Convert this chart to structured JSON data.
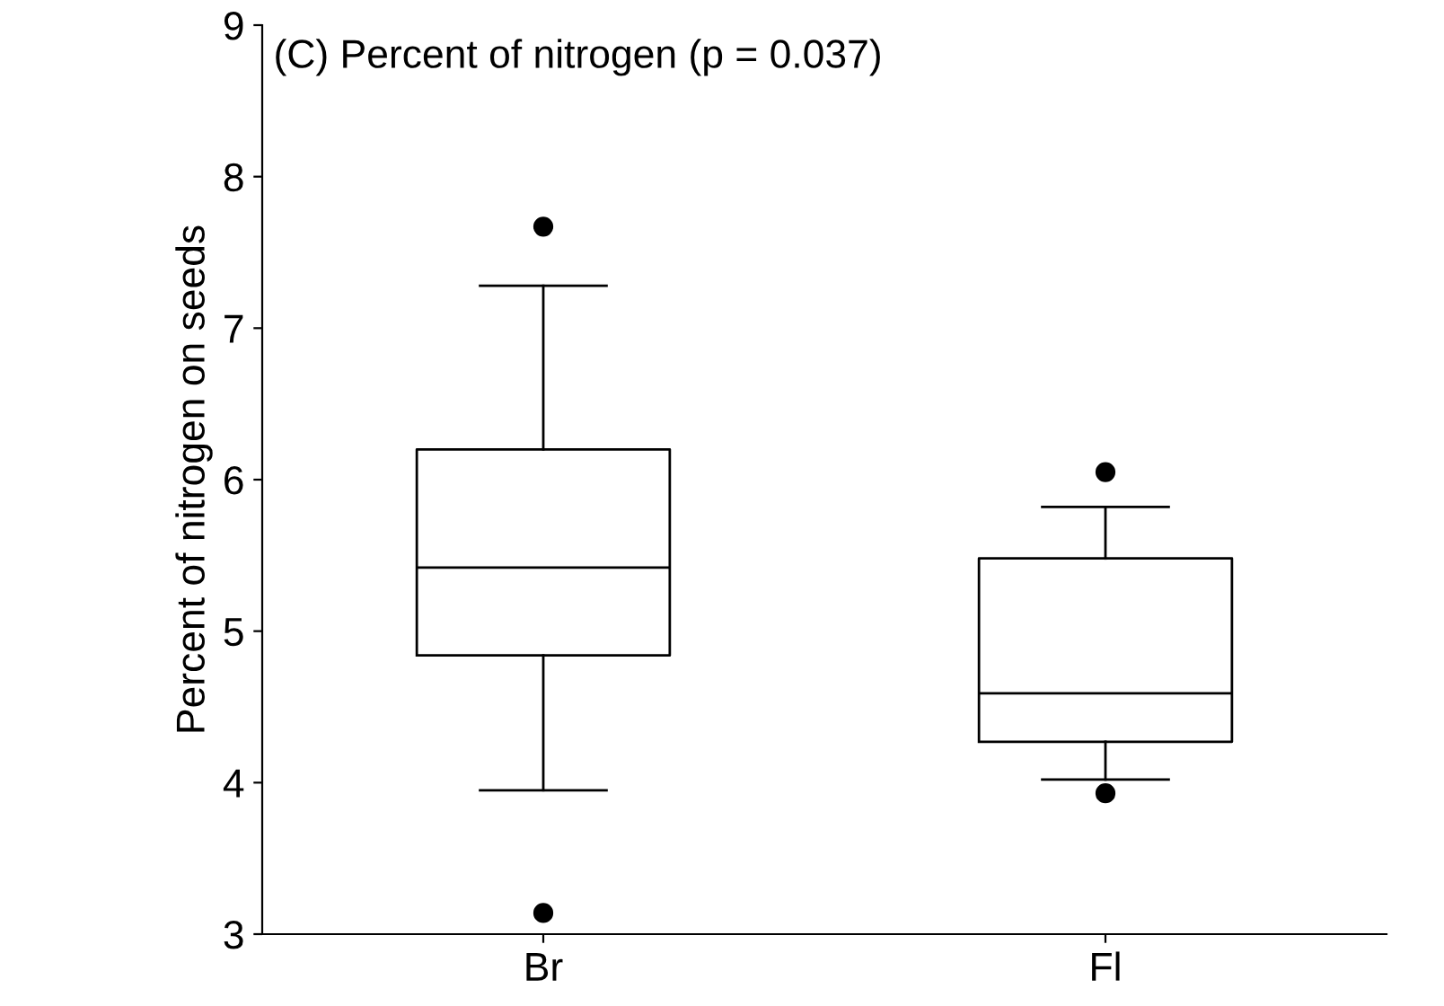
{
  "chart_data": {
    "type": "box",
    "title": "(C) Percent of nitrogen (p = 0.037)",
    "ylabel": "Percent of nitrogen on seeds",
    "categories": [
      "Br",
      "Fl"
    ],
    "boxes": [
      {
        "low": 3.95,
        "q1": 4.84,
        "median": 5.42,
        "q3": 6.2,
        "high": 7.28,
        "outliers": [
          7.67,
          3.14
        ]
      },
      {
        "low": 4.02,
        "q1": 4.27,
        "median": 4.59,
        "q3": 5.48,
        "high": 5.82,
        "outliers": [
          6.05,
          3.93
        ]
      }
    ],
    "ylim": [
      3,
      9
    ],
    "yticks": [
      3,
      4,
      5,
      6,
      7,
      8,
      9
    ],
    "grid": false,
    "legend": false
  }
}
